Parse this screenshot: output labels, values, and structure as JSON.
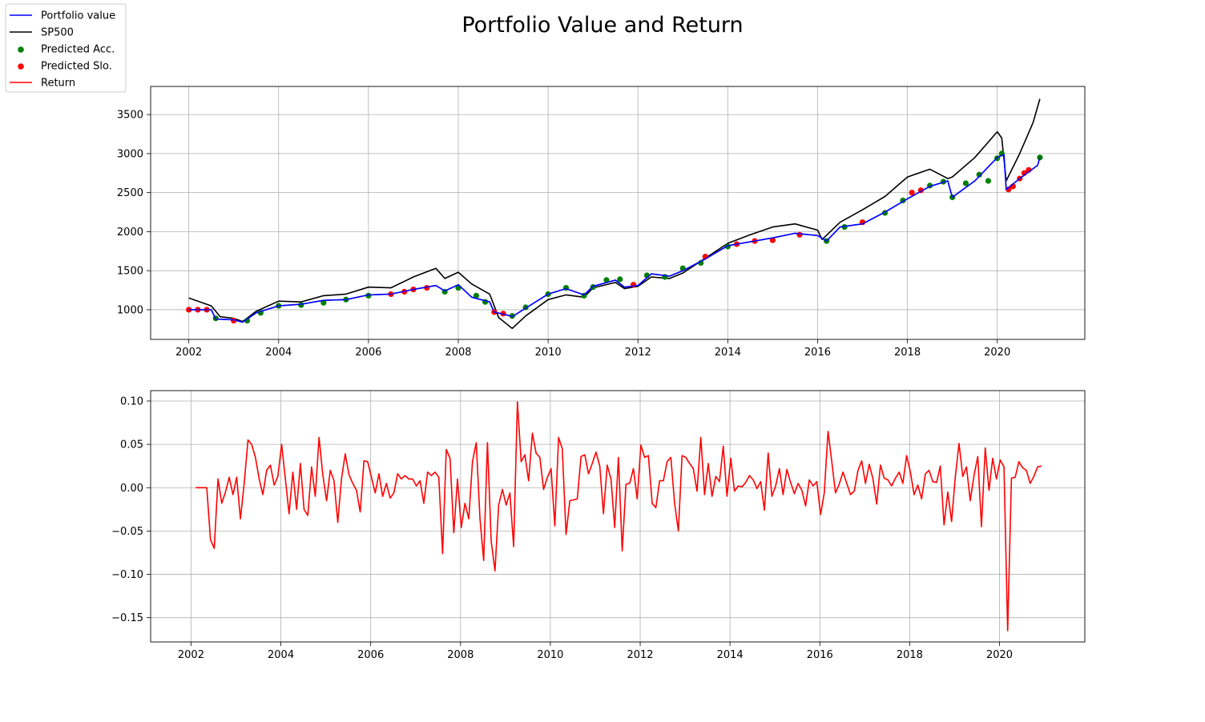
{
  "figure_title": "Portfolio Value and Return",
  "legend": [
    {
      "label": "Portfolio value",
      "kind": "line",
      "color": "#0000ff"
    },
    {
      "label": "SP500",
      "kind": "line",
      "color": "#000000"
    },
    {
      "label": "Predicted Acc.",
      "kind": "marker",
      "color": "#008000"
    },
    {
      "label": "Predicted Slo.",
      "kind": "marker",
      "color": "#ff0000"
    },
    {
      "label": "Return",
      "kind": "line",
      "color": "#ff0000"
    }
  ],
  "chart_data": [
    {
      "type": "line",
      "panel": "top",
      "xlim": [
        2001.15,
        2021.95
      ],
      "ylim": [
        620,
        3860
      ],
      "x_ticks": [
        "2002",
        "2004",
        "2006",
        "2008",
        "2010",
        "2012",
        "2014",
        "2016",
        "2018",
        "2020"
      ],
      "y_ticks": [
        "1000",
        "1500",
        "2000",
        "2500",
        "3000",
        "3500"
      ],
      "grid": true,
      "series": [
        {
          "name": "Portfolio value",
          "color": "#0000ff",
          "x": [
            2002.0,
            2002.5,
            2002.6,
            2003.0,
            2003.2,
            2003.5,
            2004.0,
            2004.5,
            2005.0,
            2005.5,
            2006.0,
            2006.5,
            2007.0,
            2007.5,
            2007.7,
            2008.0,
            2008.3,
            2008.7,
            2008.8,
            2009.1,
            2009.2,
            2009.5,
            2010.0,
            2010.4,
            2010.8,
            2011.0,
            2011.5,
            2011.7,
            2012.0,
            2012.3,
            2012.7,
            2013.0,
            2013.5,
            2014.0,
            2014.5,
            2015.0,
            2015.5,
            2016.0,
            2016.2,
            2016.5,
            2017.0,
            2017.5,
            2018.0,
            2018.5,
            2018.9,
            2019.0,
            2019.5,
            2020.0,
            2020.15,
            2020.2,
            2020.5,
            2020.9,
            2020.95
          ],
          "y": [
            1000,
            1000,
            880,
            870,
            840,
            960,
            1050,
            1070,
            1120,
            1130,
            1190,
            1200,
            1260,
            1310,
            1240,
            1320,
            1160,
            1100,
            970,
            930,
            910,
            1020,
            1200,
            1270,
            1190,
            1300,
            1380,
            1290,
            1310,
            1460,
            1430,
            1500,
            1650,
            1820,
            1870,
            1920,
            1980,
            1950,
            1880,
            2060,
            2100,
            2250,
            2420,
            2580,
            2650,
            2440,
            2650,
            2950,
            2990,
            2540,
            2680,
            2850,
            2950
          ]
        },
        {
          "name": "SP500",
          "color": "#000000",
          "x": [
            2002.0,
            2002.5,
            2002.7,
            2003.0,
            2003.2,
            2003.5,
            2004.0,
            2004.5,
            2005.0,
            2005.5,
            2006.0,
            2006.5,
            2007.0,
            2007.5,
            2007.7,
            2008.0,
            2008.3,
            2008.7,
            2008.9,
            2009.2,
            2009.5,
            2010.0,
            2010.4,
            2010.8,
            2011.0,
            2011.5,
            2011.7,
            2012.0,
            2012.3,
            2012.7,
            2013.0,
            2013.5,
            2014.0,
            2014.5,
            2015.0,
            2015.5,
            2016.0,
            2016.1,
            2016.5,
            2017.0,
            2017.5,
            2018.0,
            2018.5,
            2018.9,
            2019.0,
            2019.5,
            2020.0,
            2020.1,
            2020.2,
            2020.5,
            2020.8,
            2020.95
          ],
          "y": [
            1150,
            1050,
            910,
            890,
            850,
            980,
            1110,
            1100,
            1180,
            1200,
            1290,
            1280,
            1420,
            1530,
            1400,
            1480,
            1330,
            1200,
            900,
            760,
            920,
            1130,
            1190,
            1160,
            1280,
            1350,
            1270,
            1300,
            1420,
            1400,
            1470,
            1660,
            1850,
            1960,
            2060,
            2100,
            2020,
            1900,
            2120,
            2280,
            2450,
            2700,
            2800,
            2680,
            2700,
            2950,
            3280,
            3200,
            2650,
            3000,
            3400,
            3700
          ]
        }
      ],
      "scatter": [
        {
          "name": "Predicted Acc.",
          "color": "#008000",
          "x": [
            2002.6,
            2003.3,
            2003.6,
            2004.0,
            2004.5,
            2005.0,
            2005.5,
            2006.0,
            2007.7,
            2008.0,
            2008.4,
            2008.6,
            2009.2,
            2009.5,
            2010.0,
            2010.4,
            2010.8,
            2011.0,
            2011.3,
            2011.6,
            2012.2,
            2012.6,
            2013.0,
            2013.4,
            2014.0,
            2016.2,
            2016.6,
            2017.0,
            2017.5,
            2017.9,
            2018.5,
            2018.8,
            2019.0,
            2019.3,
            2019.6,
            2019.8,
            2020.0,
            2020.1,
            2020.95
          ],
          "y": [
            890,
            860,
            960,
            1050,
            1060,
            1090,
            1130,
            1180,
            1230,
            1280,
            1180,
            1100,
            920,
            1030,
            1200,
            1280,
            1180,
            1290,
            1380,
            1390,
            1440,
            1420,
            1530,
            1600,
            1810,
            1880,
            2060,
            2120,
            2240,
            2400,
            2590,
            2640,
            2440,
            2620,
            2730,
            2650,
            2940,
            3000,
            2950
          ]
        },
        {
          "name": "Predicted Slo.",
          "color": "#ff0000",
          "x": [
            2002.0,
            2002.2,
            2002.4,
            2003.0,
            2006.5,
            2006.8,
            2007.0,
            2007.3,
            2008.8,
            2009.0,
            2011.9,
            2013.5,
            2014.2,
            2014.6,
            2015.0,
            2015.6,
            2017.0,
            2018.1,
            2018.3,
            2020.25,
            2020.35,
            2020.5,
            2020.6,
            2020.7
          ],
          "y": [
            1000,
            1000,
            1000,
            860,
            1200,
            1230,
            1260,
            1280,
            970,
            950,
            1320,
            1680,
            1840,
            1880,
            1890,
            1960,
            2120,
            2500,
            2530,
            2540,
            2580,
            2680,
            2750,
            2790
          ]
        }
      ]
    },
    {
      "type": "line",
      "panel": "bottom",
      "xlim": [
        2001.1,
        2021.9
      ],
      "ylim": [
        -0.178,
        0.112
      ],
      "x_ticks": [
        "2002",
        "2004",
        "2006",
        "2008",
        "2010",
        "2012",
        "2014",
        "2016",
        "2018",
        "2020"
      ],
      "y_ticks": [
        "0.10",
        "0.05",
        "0.00",
        "−0.05",
        "−0.10",
        "−0.15"
      ],
      "grid": true,
      "series": [
        {
          "name": "Return",
          "color": "#ff0000",
          "x_start": 2002.1,
          "x_step": 0.08333,
          "y": [
            0,
            0,
            0,
            0,
            -0.06,
            -0.07,
            0.01,
            -0.018,
            -0.005,
            0.012,
            -0.008,
            0.012,
            -0.036,
            0.005,
            0.055,
            0.05,
            0.035,
            0.01,
            -0.008,
            0.02,
            0.026,
            0.003,
            0.013,
            0.05,
            0.01,
            -0.03,
            0.018,
            -0.025,
            0.028,
            -0.025,
            -0.032,
            0.024,
            -0.01,
            0.058,
            0.015,
            -0.015,
            0.02,
            0.008,
            -0.04,
            0.01,
            0.039,
            0.015,
            0.005,
            -0.003,
            -0.028,
            0.031,
            0.03,
            0.012,
            -0.006,
            0.016,
            -0.01,
            0.005,
            -0.012,
            -0.006,
            0.016,
            0.01,
            0.014,
            0.01,
            0.01,
            0.002,
            0.008,
            -0.018,
            0.018,
            0.014,
            0.018,
            0.012,
            -0.076,
            0.044,
            0.034,
            -0.052,
            0.01,
            -0.046,
            -0.018,
            -0.036,
            0.03,
            0.052,
            -0.036,
            -0.084,
            0.052,
            -0.062,
            -0.096,
            -0.02,
            -0.002,
            -0.02,
            -0.006,
            -0.068,
            0.099,
            0.03,
            0.038,
            0.008,
            0.063,
            0.04,
            0.035,
            -0.002,
            0.012,
            0.022,
            -0.044,
            0.058,
            0.045,
            -0.054,
            -0.015,
            -0.014,
            -0.013,
            0.036,
            0.038,
            0.016,
            0.028,
            0.041,
            0.025,
            -0.03,
            0.026,
            0.01,
            -0.046,
            0.035,
            -0.073,
            0.004,
            0.005,
            0.022,
            -0.013,
            0.049,
            0.035,
            0.037,
            -0.018,
            -0.023,
            0.008,
            0.008,
            0.03,
            0.035,
            -0.018,
            -0.05,
            0.037,
            0.035,
            0.028,
            0.022,
            -0.004,
            0.058,
            -0.008,
            0.028,
            -0.01,
            0.013,
            0.007,
            0.048,
            -0.01,
            0.034,
            -0.004,
            0.002,
            0.001,
            0.006,
            0.014,
            0.009,
            -0.001,
            0.007,
            -0.026,
            0.04,
            -0.01,
            0.002,
            0.022,
            -0.008,
            0.021,
            0.006,
            -0.007,
            0.005,
            -0.003,
            -0.021,
            0.009,
            0.002,
            0.007,
            -0.031,
            -0.006,
            0.065,
            0.03,
            -0.006,
            0.004,
            0.018,
            0.005,
            -0.008,
            -0.004,
            0.02,
            0.031,
            0.005,
            0.027,
            0.01,
            -0.019,
            0.026,
            0.011,
            0.009,
            0.002,
            0.011,
            0.018,
            0.005,
            0.037,
            0.018,
            -0.008,
            0.003,
            -0.013,
            0.016,
            0.02,
            0.007,
            0.006,
            0.025,
            -0.043,
            -0.005,
            -0.039,
            0.012,
            0.051,
            0.013,
            0.024,
            -0.015,
            0.014,
            0.036,
            -0.045,
            0.046,
            -0.003,
            0.034,
            0.01,
            0.032,
            0.024,
            -0.165,
            0.011,
            0.012,
            0.03,
            0.023,
            0.02,
            0.005,
            0.013,
            0.024,
            0.025
          ]
        }
      ]
    }
  ]
}
